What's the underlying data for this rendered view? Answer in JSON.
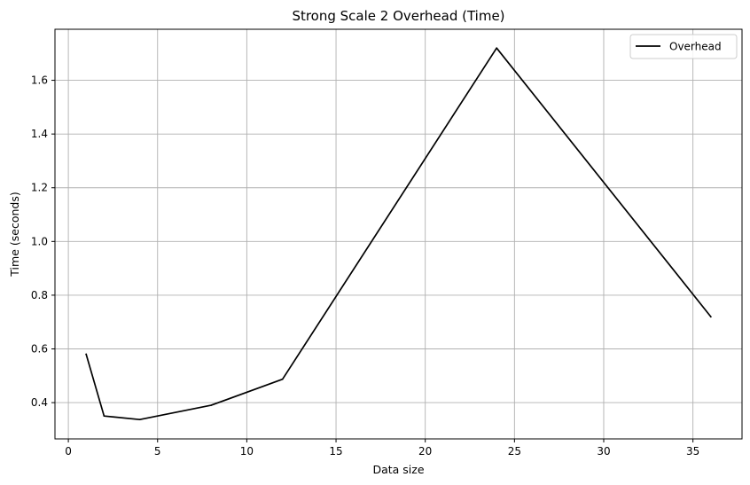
{
  "chart_data": {
    "type": "line",
    "title": "Strong Scale 2 Overhead (Time)",
    "xlabel": "Data size",
    "ylabel": "Time (seconds)",
    "xlim": [
      -0.75,
      37.75
    ],
    "ylim": [
      0.265,
      1.79
    ],
    "xticks": [
      0,
      5,
      10,
      15,
      20,
      25,
      30,
      35
    ],
    "yticks": [
      0.4,
      0.6,
      0.8,
      1.0,
      1.2,
      1.4,
      1.6
    ],
    "ytick_labels": [
      "0.4",
      "0.6",
      "0.8",
      "1.0",
      "1.2",
      "1.4",
      "1.6"
    ],
    "grid": true,
    "legend_position": "top-right",
    "series": [
      {
        "name": "Overhead",
        "color": "#000000",
        "x": [
          1,
          2,
          4,
          8,
          12,
          24,
          36
        ],
        "y": [
          0.58,
          0.35,
          0.337,
          0.39,
          0.487,
          1.72,
          0.72
        ]
      }
    ]
  }
}
